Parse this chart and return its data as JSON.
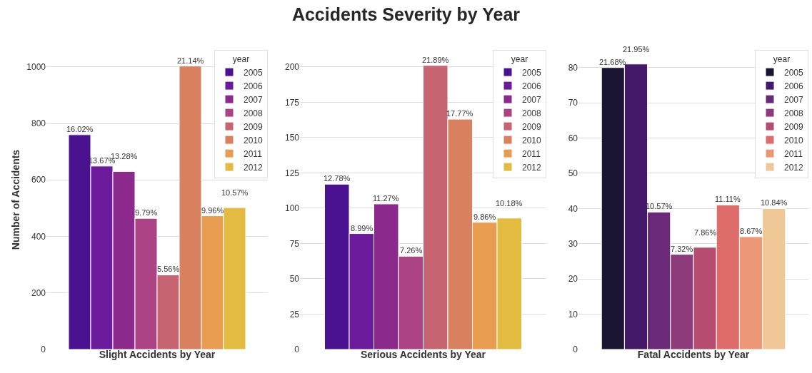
{
  "chart_data": [
    {
      "type": "bar",
      "xlabel": "Slight Accidents by Year",
      "ylabel": "Number of Accidents",
      "legend_title": "year",
      "categories": [
        null
      ],
      "ylim": [
        0,
        1060
      ],
      "yticks": [
        0,
        200,
        400,
        600,
        800,
        1000
      ],
      "grid": "y",
      "legend": "top right",
      "tick_labels": "y",
      "annotations": [
        {
          "text": "16.02%",
          "y": 760
        },
        {
          "text": "13.67%",
          "y": 649
        },
        {
          "text": "13.28%",
          "y": 630
        },
        {
          "text": "9.79%",
          "y": 464
        },
        {
          "text": "5.56%",
          "y": 264
        },
        {
          "text": "21.14%",
          "y": 1003
        },
        {
          "text": "9.96%",
          "y": 473
        },
        {
          "text": "10.57%",
          "y": 502
        }
      ],
      "series": [
        {
          "name": "2005",
          "color": "#4a1190",
          "values": [
            760
          ]
        },
        {
          "name": "2006",
          "color": "#6a1a9a",
          "values": [
            649
          ]
        },
        {
          "name": "2007",
          "color": "#8b2a8c",
          "values": [
            630
          ]
        },
        {
          "name": "2008",
          "color": "#aa4283",
          "values": [
            464
          ]
        },
        {
          "name": "2009",
          "color": "#c66472",
          "values": [
            264
          ]
        },
        {
          "name": "2010",
          "color": "#d9805f",
          "values": [
            1003
          ]
        },
        {
          "name": "2011",
          "color": "#e89c4f",
          "values": [
            473
          ]
        },
        {
          "name": "2012",
          "color": "#e2bb40",
          "values": [
            502
          ]
        }
      ]
    },
    {
      "type": "bar",
      "title": "Accidents Severity by Year",
      "xlabel": "Serious Accidents by Year",
      "legend_title": "year",
      "categories": [
        null
      ],
      "ylim": [
        0,
        212
      ],
      "yticks": [
        0,
        25,
        50,
        75,
        100,
        125,
        150,
        175,
        200
      ],
      "grid": "y",
      "legend": "top right",
      "tick_labels": "y",
      "annotations": [
        {
          "text": "12.78%",
          "y": 117
        },
        {
          "text": "8.99%",
          "y": 82
        },
        {
          "text": "11.27%",
          "y": 103
        },
        {
          "text": "7.26%",
          "y": 66
        },
        {
          "text": "21.89%",
          "y": 201
        },
        {
          "text": "17.77%",
          "y": 163
        },
        {
          "text": "9.86%",
          "y": 90
        },
        {
          "text": "10.18%",
          "y": 93
        }
      ],
      "series": [
        {
          "name": "2005",
          "color": "#4a1190",
          "values": [
            117
          ]
        },
        {
          "name": "2006",
          "color": "#6a1a9a",
          "values": [
            82
          ]
        },
        {
          "name": "2007",
          "color": "#8b2a8c",
          "values": [
            103
          ]
        },
        {
          "name": "2008",
          "color": "#aa4283",
          "values": [
            66
          ]
        },
        {
          "name": "2009",
          "color": "#c66472",
          "values": [
            201
          ]
        },
        {
          "name": "2010",
          "color": "#d9805f",
          "values": [
            163
          ]
        },
        {
          "name": "2011",
          "color": "#e89c4f",
          "values": [
            90
          ]
        },
        {
          "name": "2012",
          "color": "#e2bb40",
          "values": [
            93
          ]
        }
      ]
    },
    {
      "type": "bar",
      "xlabel": "Fatal Accidents by Year",
      "legend_title": "year",
      "categories": [
        null
      ],
      "ylim": [
        0,
        85
      ],
      "yticks": [
        0,
        10,
        20,
        30,
        40,
        50,
        60,
        70,
        80
      ],
      "grid": "y",
      "legend": "top right",
      "tick_labels": "y",
      "annotations": [
        {
          "text": "21.68%",
          "y": 80
        },
        {
          "text": "21.95%",
          "y": 81
        },
        {
          "text": "10.57%",
          "y": 39
        },
        {
          "text": "7.32%",
          "y": 27
        },
        {
          "text": "7.86%",
          "y": 29
        },
        {
          "text": "11.11%",
          "y": 41
        },
        {
          "text": "8.67%",
          "y": 32
        },
        {
          "text": "10.84%",
          "y": 40
        }
      ],
      "series": [
        {
          "name": "2005",
          "color": "#1a1533",
          "values": [
            80
          ]
        },
        {
          "name": "2006",
          "color": "#45196a",
          "values": [
            81
          ]
        },
        {
          "name": "2007",
          "color": "#6b2a78",
          "values": [
            39
          ]
        },
        {
          "name": "2008",
          "color": "#8e3b7c",
          "values": [
            27
          ]
        },
        {
          "name": "2009",
          "color": "#b64c70",
          "values": [
            29
          ]
        },
        {
          "name": "2010",
          "color": "#dd6c6a",
          "values": [
            41
          ]
        },
        {
          "name": "2011",
          "color": "#ec9877",
          "values": [
            32
          ]
        },
        {
          "name": "2012",
          "color": "#f0c898",
          "values": [
            40
          ]
        }
      ]
    }
  ]
}
